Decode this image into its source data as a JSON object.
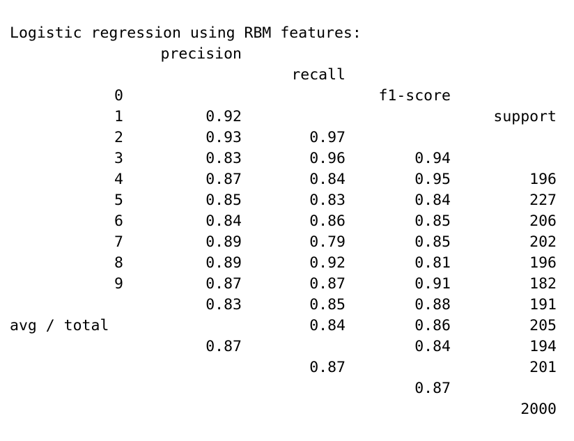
{
  "title": "Logistic regression using RBM features:",
  "headers": {
    "precision": "precision",
    "recall": "recall",
    "f1": "f1-score",
    "support": "support"
  },
  "rows": [
    {
      "label": "0",
      "precision": "0.92",
      "recall": "0.97",
      "f1": "0.94",
      "support": "196"
    },
    {
      "label": "1",
      "precision": "0.93",
      "recall": "0.96",
      "f1": "0.95",
      "support": "227"
    },
    {
      "label": "2",
      "precision": "0.83",
      "recall": "0.84",
      "f1": "0.84",
      "support": "206"
    },
    {
      "label": "3",
      "precision": "0.87",
      "recall": "0.83",
      "f1": "0.85",
      "support": "202"
    },
    {
      "label": "4",
      "precision": "0.85",
      "recall": "0.86",
      "f1": "0.85",
      "support": "196"
    },
    {
      "label": "5",
      "precision": "0.84",
      "recall": "0.79",
      "f1": "0.81",
      "support": "182"
    },
    {
      "label": "6",
      "precision": "0.89",
      "recall": "0.92",
      "f1": "0.91",
      "support": "191"
    },
    {
      "label": "7",
      "precision": "0.89",
      "recall": "0.87",
      "f1": "0.88",
      "support": "205"
    },
    {
      "label": "8",
      "precision": "0.87",
      "recall": "0.85",
      "f1": "0.86",
      "support": "194"
    },
    {
      "label": "9",
      "precision": "0.83",
      "recall": "0.84",
      "f1": "0.84",
      "support": "201"
    }
  ],
  "total": {
    "label": "avg / total",
    "precision": "0.87",
    "recall": "0.87",
    "f1": "0.87",
    "support": "2000"
  }
}
